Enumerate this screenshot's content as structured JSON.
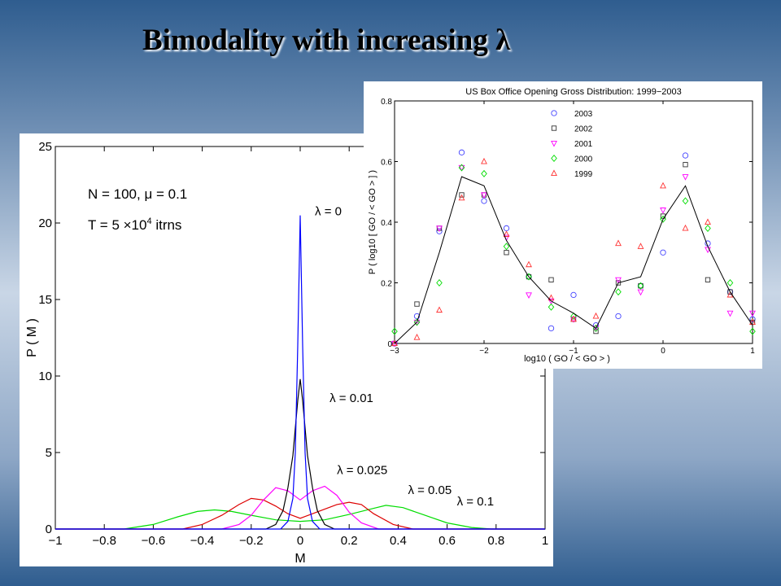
{
  "slide": {
    "title": "Bimodality with increasing λ"
  },
  "chart_data": [
    {
      "type": "line",
      "title": "",
      "xlabel": "M",
      "ylabel": "P ( M )",
      "xlim": [
        -1,
        1
      ],
      "ylim": [
        0,
        25
      ],
      "xticks": [
        -1,
        -0.8,
        -0.6,
        -0.4,
        -0.2,
        0,
        0.2,
        0.4,
        0.6,
        0.8,
        1
      ],
      "xtick_labels": [
        "−1",
        "−0.8",
        "−0.6",
        "−0.4",
        "−0.2",
        "0",
        "0.2",
        "0.4",
        "0.6",
        "0.8",
        "1"
      ],
      "yticks": [
        0,
        5,
        10,
        15,
        20,
        25
      ],
      "ytick_labels": [
        "0",
        "5",
        "10",
        "15",
        "20",
        "25"
      ],
      "grid": false,
      "annotations": {
        "params_line1": "N = 100, μ = 0.1",
        "params_line2_prefix": "T = 5 ×10",
        "params_line2_exp": "4",
        "params_line2_suffix": " itrns"
      },
      "series": [
        {
          "name": "λ = 0",
          "color": "#0000ff",
          "label_at": [
            0.06,
            20.5
          ],
          "points": [
            [
              -1,
              0
            ],
            [
              -0.08,
              0
            ],
            [
              -0.05,
              0.5
            ],
            [
              -0.03,
              2
            ],
            [
              -0.02,
              5
            ],
            [
              -0.01,
              12
            ],
            [
              0,
              20.5
            ],
            [
              0.01,
              12
            ],
            [
              0.02,
              5
            ],
            [
              0.03,
              2
            ],
            [
              0.05,
              0.5
            ],
            [
              0.08,
              0
            ],
            [
              1,
              0
            ]
          ]
        },
        {
          "name": "λ = 0.01",
          "color": "#000000",
          "label_at": [
            0.12,
            8.3
          ],
          "points": [
            [
              -1,
              0
            ],
            [
              -0.14,
              0
            ],
            [
              -0.1,
              0.3
            ],
            [
              -0.07,
              1.2
            ],
            [
              -0.05,
              2.7
            ],
            [
              -0.03,
              4.8
            ],
            [
              -0.01,
              8.4
            ],
            [
              0,
              9.8
            ],
            [
              0.01,
              8.4
            ],
            [
              0.03,
              4.8
            ],
            [
              0.05,
              2.7
            ],
            [
              0.07,
              1.2
            ],
            [
              0.1,
              0.3
            ],
            [
              0.14,
              0
            ],
            [
              1,
              0
            ]
          ]
        },
        {
          "name": "λ = 0.025",
          "color": "#ff00ff",
          "label_at": [
            0.15,
            3.6
          ],
          "points": [
            [
              -1,
              0
            ],
            [
              -0.32,
              0
            ],
            [
              -0.25,
              0.3
            ],
            [
              -0.2,
              0.9
            ],
            [
              -0.15,
              1.9
            ],
            [
              -0.1,
              2.7
            ],
            [
              -0.05,
              2.5
            ],
            [
              0,
              1.9
            ],
            [
              0.05,
              2.5
            ],
            [
              0.1,
              2.8
            ],
            [
              0.15,
              2.2
            ],
            [
              0.2,
              1.1
            ],
            [
              0.25,
              0.4
            ],
            [
              0.32,
              0
            ],
            [
              1,
              0
            ]
          ]
        },
        {
          "name": "λ = 0.05",
          "color": "#dd0000",
          "label_at": [
            0.44,
            2.3
          ],
          "points": [
            [
              -1,
              0
            ],
            [
              -0.48,
              0
            ],
            [
              -0.4,
              0.3
            ],
            [
              -0.32,
              0.9
            ],
            [
              -0.25,
              1.6
            ],
            [
              -0.2,
              2.0
            ],
            [
              -0.15,
              1.9
            ],
            [
              -0.1,
              1.5
            ],
            [
              -0.05,
              1.0
            ],
            [
              0,
              0.7
            ],
            [
              0.05,
              1.0
            ],
            [
              0.1,
              1.3
            ],
            [
              0.15,
              1.6
            ],
            [
              0.2,
              1.75
            ],
            [
              0.25,
              1.6
            ],
            [
              0.3,
              1.0
            ],
            [
              0.38,
              0.3
            ],
            [
              0.46,
              0
            ],
            [
              1,
              0
            ]
          ]
        },
        {
          "name": "λ = 0.1",
          "color": "#00dd00",
          "label_at": [
            0.64,
            1.55
          ],
          "points": [
            [
              -1,
              0
            ],
            [
              -0.72,
              0
            ],
            [
              -0.6,
              0.3
            ],
            [
              -0.5,
              0.8
            ],
            [
              -0.42,
              1.15
            ],
            [
              -0.35,
              1.25
            ],
            [
              -0.28,
              1.15
            ],
            [
              -0.2,
              0.9
            ],
            [
              -0.1,
              0.6
            ],
            [
              0,
              0.5
            ],
            [
              0.1,
              0.6
            ],
            [
              0.2,
              0.95
            ],
            [
              0.3,
              1.35
            ],
            [
              0.35,
              1.55
            ],
            [
              0.42,
              1.4
            ],
            [
              0.5,
              0.95
            ],
            [
              0.6,
              0.4
            ],
            [
              0.7,
              0.1
            ],
            [
              0.78,
              0
            ],
            [
              1,
              0
            ]
          ]
        }
      ]
    },
    {
      "type": "scatter",
      "title": "US Box Office Opening Gross Distribution: 1999−2003",
      "xlabel": "log10 ( GO / < GO > )",
      "ylabel": "P ( log10 [ GO / < GO > ] )",
      "xlim": [
        -3,
        1
      ],
      "ylim": [
        0,
        0.8
      ],
      "xticks": [
        -3,
        -2,
        -1,
        0,
        1
      ],
      "xtick_labels": [
        "−3",
        "−2",
        "−1",
        "0",
        "1"
      ],
      "yticks": [
        0,
        0.2,
        0.4,
        0.6,
        0.8
      ],
      "ytick_labels": [
        "0",
        "0.2",
        "0.4",
        "0.6",
        "0.8"
      ],
      "grid": false,
      "legend_position": "top-left",
      "x": [
        -3,
        -2.75,
        -2.5,
        -2.25,
        -2,
        -1.75,
        -1.5,
        -1.25,
        -1,
        -0.75,
        -0.5,
        -0.25,
        0,
        0.25,
        0.5,
        0.75,
        1
      ],
      "series": [
        {
          "name": "2003",
          "marker": "circle",
          "color": "#4444ff",
          "values": [
            0.0,
            0.09,
            0.37,
            0.63,
            0.47,
            0.38,
            0.22,
            0.05,
            0.16,
            0.06,
            0.09,
            0.19,
            0.3,
            0.62,
            0.33,
            0.17,
            0.08
          ]
        },
        {
          "name": "2002",
          "marker": "square",
          "color": "#333333",
          "values": [
            0.0,
            0.13,
            0.38,
            0.49,
            0.49,
            0.3,
            0.22,
            0.21,
            0.08,
            0.04,
            0.2,
            0.19,
            0.42,
            0.59,
            0.21,
            0.17,
            0.07
          ]
        },
        {
          "name": "2001",
          "marker": "triangle-down",
          "color": "#ff00ff",
          "values": [
            0.0,
            0.07,
            0.38,
            0.58,
            0.49,
            0.35,
            0.16,
            0.14,
            0.08,
            0.05,
            0.21,
            0.17,
            0.44,
            0.55,
            0.31,
            0.1,
            0.1
          ]
        },
        {
          "name": "2000",
          "marker": "diamond",
          "color": "#00dd00",
          "values": [
            0.04,
            0.07,
            0.2,
            0.58,
            0.56,
            0.32,
            0.22,
            0.12,
            0.09,
            0.05,
            0.17,
            0.19,
            0.41,
            0.47,
            0.38,
            0.2,
            0.04
          ]
        },
        {
          "name": "1999",
          "marker": "triangle-up",
          "color": "#ff3333",
          "values": [
            0.0,
            0.02,
            0.11,
            0.48,
            0.6,
            0.36,
            0.26,
            0.15,
            0.08,
            0.09,
            0.33,
            0.32,
            0.52,
            0.38,
            0.4,
            0.16,
            0.07
          ]
        },
        {
          "name": "",
          "marker": "line",
          "color": "#000000",
          "values": [
            0.0,
            0.07,
            0.3,
            0.55,
            0.52,
            0.34,
            0.22,
            0.14,
            0.1,
            0.05,
            0.2,
            0.22,
            0.41,
            0.52,
            0.32,
            0.17,
            0.06
          ]
        }
      ]
    }
  ]
}
